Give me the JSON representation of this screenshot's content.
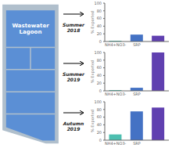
{
  "chart_data": [
    {
      "type": "bar",
      "title": "Summer\n2018",
      "annotations": [
        "Wastewater Lagoon"
      ],
      "categories": [
        "NH4+NO3-",
        "SRP",
        null
      ],
      "values": [
        2,
        18,
        15
      ],
      "colors": [
        "#4dbfb0",
        "#4472c4",
        "#6040b0"
      ],
      "ylabel": "% Exported",
      "ylim": [
        0,
        100
      ],
      "yticks": [
        0,
        20,
        40,
        60,
        80,
        100
      ],
      "grid": false
    },
    {
      "type": "bar",
      "title": "Summer\n2019",
      "categories": [
        "NH4+NO3-",
        "SRP",
        null
      ],
      "values": [
        2,
        8,
        100
      ],
      "colors": [
        "#4dbfb0",
        "#4472c4",
        "#6040b0"
      ],
      "ylabel": "% Exported",
      "ylim": [
        0,
        100
      ],
      "yticks": [
        0,
        20,
        40,
        60,
        80,
        100
      ],
      "grid": false
    },
    {
      "type": "bar",
      "title": "Autumn\n2019",
      "categories": [
        "NH4+NO3-",
        "SRP",
        null
      ],
      "values": [
        15,
        75,
        85
      ],
      "colors": [
        "#4dbfb0",
        "#4472c4",
        "#6040b0"
      ],
      "ylabel": "% Exported",
      "ylim": [
        0,
        100
      ],
      "yticks": [
        0,
        20,
        40,
        60,
        80,
        100
      ],
      "grid": false
    }
  ]
}
